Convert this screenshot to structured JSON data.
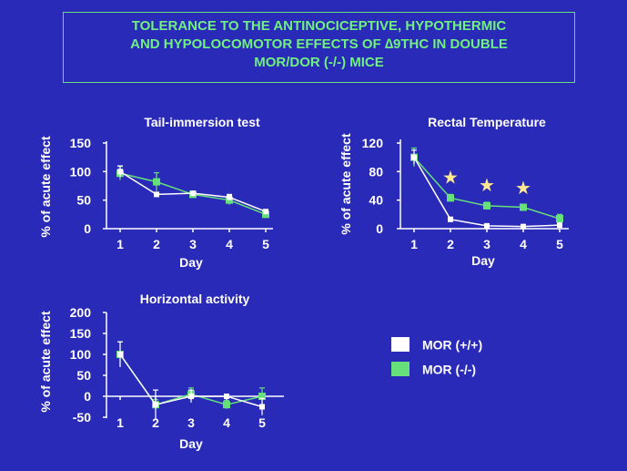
{
  "title": {
    "lines": [
      "TOLERANCE TO THE ANTINOCICEPTIVE, HYPOTHERMIC",
      "AND HYPOLOCOMOTOR  EFFECTS OF ∆9THC IN DOUBLE",
      "MOR/DOR (-/-) MICE"
    ]
  },
  "legend": [
    {
      "label": "MOR (+/+)",
      "color": "#ffffff"
    },
    {
      "label": "MOR (-/-)",
      "color": "#66e07a"
    }
  ],
  "colors": {
    "background": "#2a2ab8",
    "axis": "#ffffff",
    "title": "#70f080",
    "wt": "#ffffff",
    "ko": "#66e07a",
    "star": "#ffe890"
  },
  "chart_data": [
    {
      "type": "line",
      "title": "Tail-immersion test",
      "xlabel": "Day",
      "ylabel": "% of acute effect",
      "x": [
        1,
        2,
        3,
        4,
        5
      ],
      "ylim": [
        0,
        150
      ],
      "yticks": [
        0,
        50,
        100,
        150
      ],
      "series": [
        {
          "name": "MOR (+/+)",
          "values": [
            100,
            60,
            62,
            55,
            30
          ],
          "errors": [
            10,
            0,
            0,
            5,
            0
          ]
        },
        {
          "name": "MOR (-/-)",
          "values": [
            97,
            82,
            60,
            50,
            25
          ],
          "errors": [
            12,
            16,
            5,
            8,
            4
          ]
        }
      ]
    },
    {
      "type": "line",
      "title": "Rectal Temperature",
      "xlabel": "Day",
      "ylabel": "% of acute effect",
      "x": [
        1,
        2,
        3,
        4,
        5
      ],
      "ylim": [
        0,
        120
      ],
      "yticks": [
        0,
        40,
        80,
        120
      ],
      "significant_days": [
        2,
        3,
        4
      ],
      "series": [
        {
          "name": "MOR (+/+)",
          "values": [
            100,
            13,
            4,
            3,
            5
          ],
          "errors": [
            10,
            3,
            0,
            0,
            0
          ]
        },
        {
          "name": "MOR (-/-)",
          "values": [
            100,
            43,
            32,
            30,
            14
          ],
          "errors": [
            13,
            5,
            5,
            3,
            6
          ]
        }
      ]
    },
    {
      "type": "line",
      "title": "Horizontal activity",
      "xlabel": "Day",
      "ylabel": "% of acute  effect",
      "x": [
        1,
        2,
        3,
        4,
        5
      ],
      "ylim": [
        -50,
        200
      ],
      "yticks": [
        -50,
        0,
        50,
        100,
        150,
        200
      ],
      "series": [
        {
          "name": "MOR (+/+)",
          "values": [
            100,
            -20,
            0,
            0,
            -25
          ],
          "errors": [
            30,
            35,
            15,
            0,
            20
          ]
        },
        {
          "name": "MOR (-/-)",
          "values": [
            100,
            -20,
            5,
            -20,
            0
          ],
          "errors": [
            30,
            12,
            15,
            10,
            20
          ]
        }
      ]
    }
  ]
}
